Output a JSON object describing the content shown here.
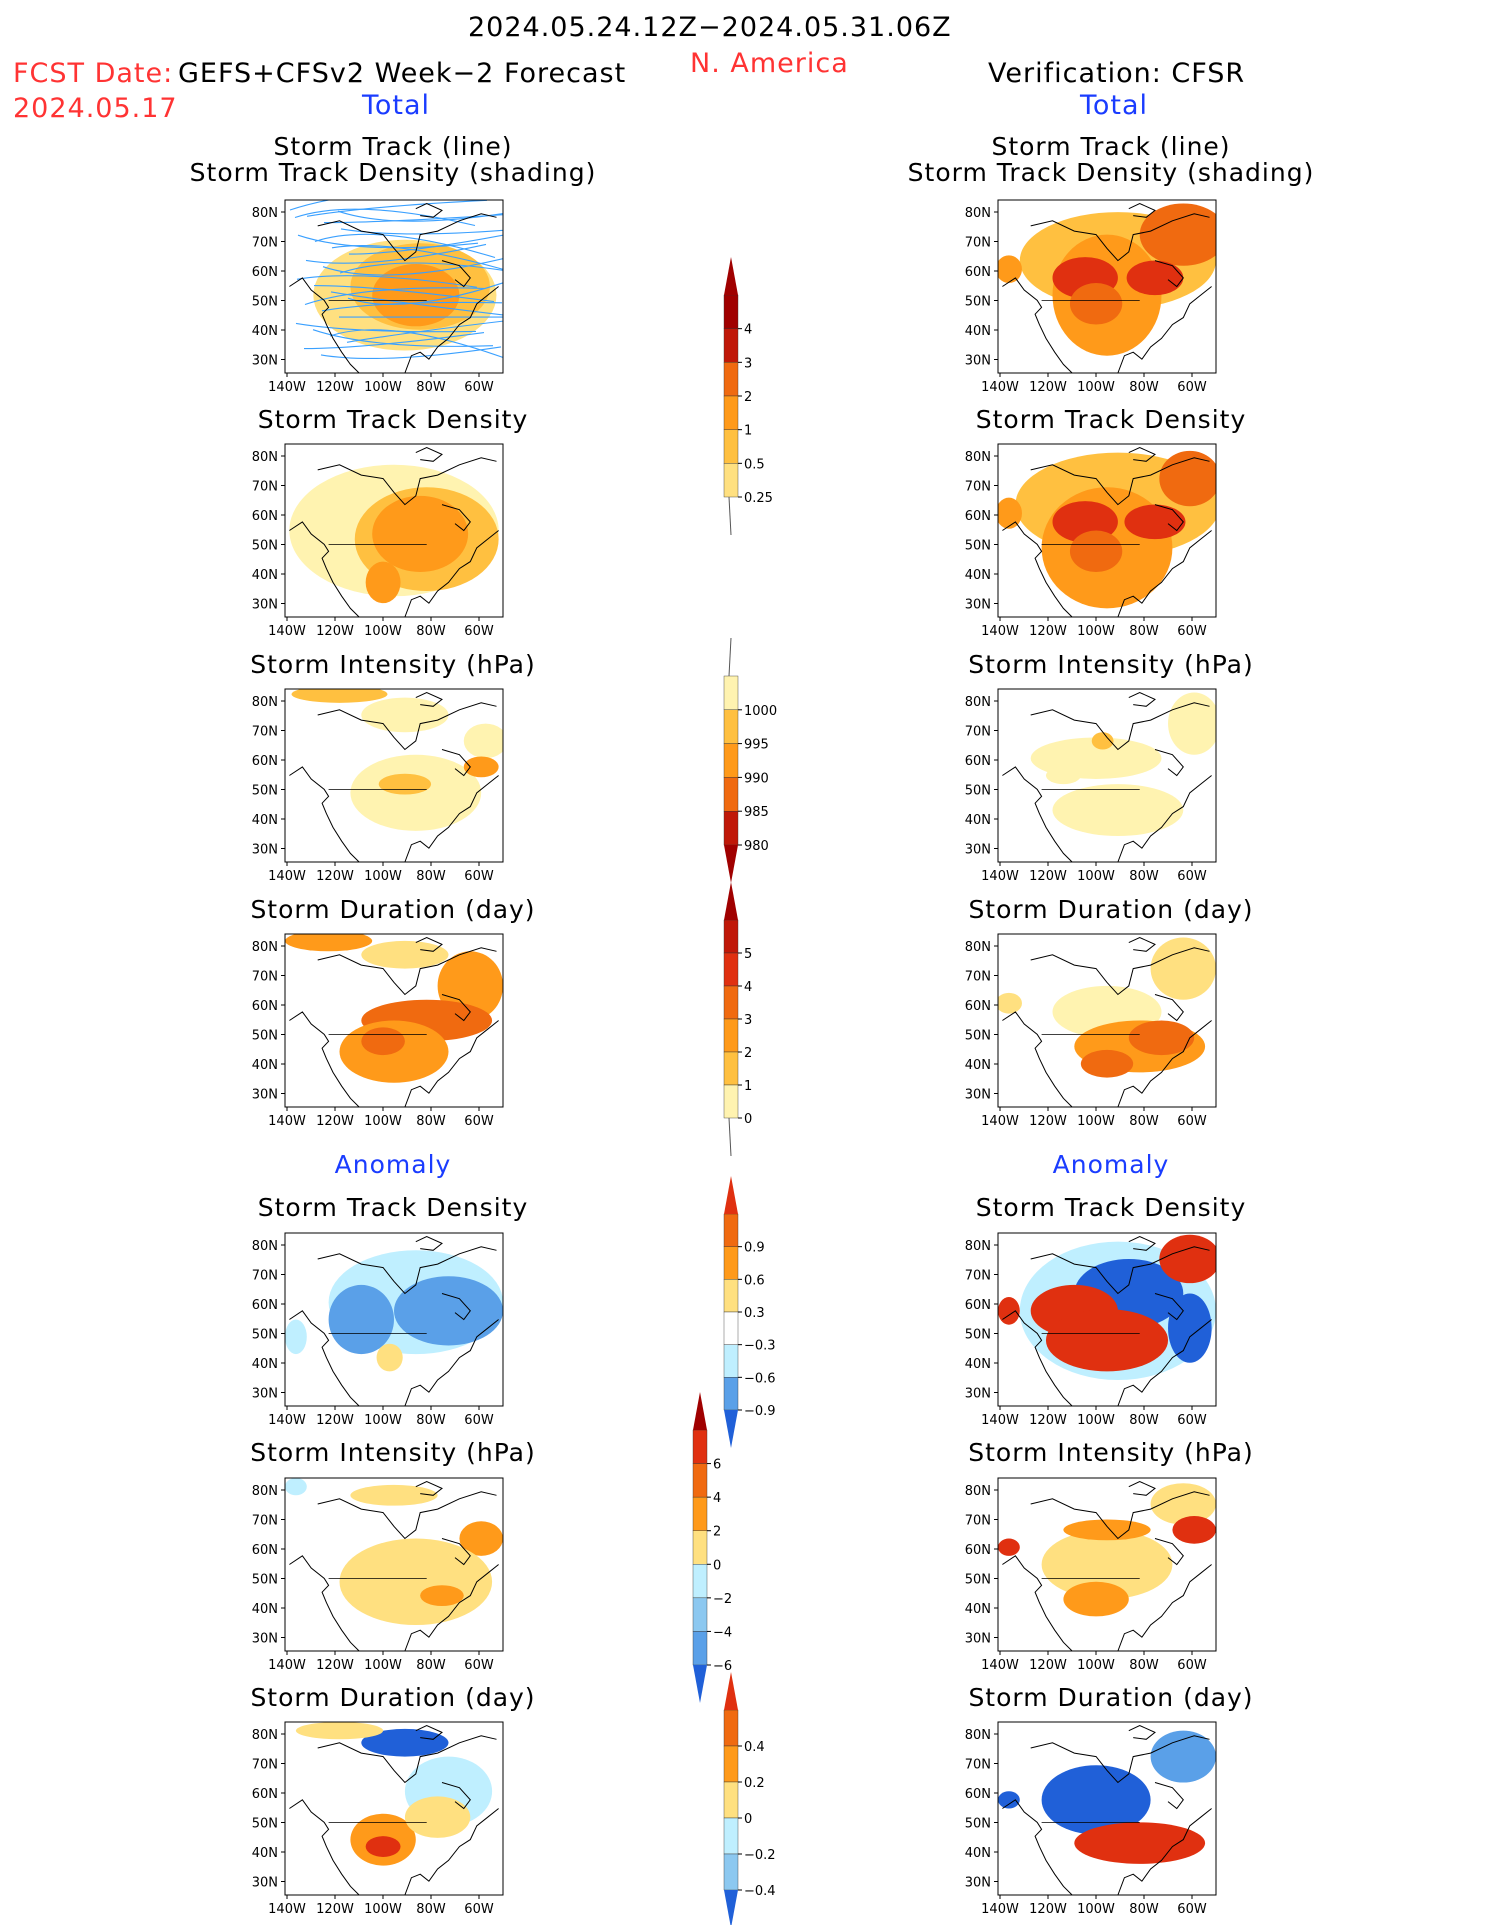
{
  "header": {
    "period": "2024.05.24.12Z−2024.05.31.06Z",
    "region": "N. America",
    "fcst_label": "FCST Date:",
    "fcst_model": "GEFS+CFSv2 Week−2 Forecast",
    "fcst_date": "2024.05.17",
    "verification": "Verification: CFSR"
  },
  "sections": {
    "total": "Total",
    "anomaly": "Anomaly"
  },
  "panel_titles": {
    "track_line": "Storm Track (line)",
    "track_shading": "Storm Track Density (shading)",
    "density": "Storm Track Density",
    "intensity": "Storm Intensity (hPa)",
    "duration": "Storm Duration (day)"
  },
  "axes": {
    "lat_ticks": [
      "80N",
      "70N",
      "60N",
      "50N",
      "40N",
      "30N"
    ],
    "lon_ticks": [
      "140W",
      "120W",
      "100W",
      "80W",
      "60W"
    ]
  },
  "colorbars": [
    {
      "id": "cb-density-total",
      "labels": [
        "4",
        "3",
        "2",
        "1",
        "0.5",
        "0.25"
      ]
    },
    {
      "id": "cb-intensity-total",
      "labels": [
        "1000",
        "995",
        "990",
        "985",
        "980"
      ]
    },
    {
      "id": "cb-duration-total",
      "labels": [
        "5",
        "4",
        "3",
        "2",
        "1",
        "0"
      ]
    },
    {
      "id": "cb-density-anom",
      "labels": [
        "0.9",
        "0.6",
        "0.3",
        "−0.3",
        "−0.6",
        "−0.9"
      ]
    },
    {
      "id": "cb-intensity-anom",
      "labels": [
        "6",
        "4",
        "2",
        "0",
        "−2",
        "−4",
        "−6"
      ]
    },
    {
      "id": "cb-duration-anom",
      "labels": [
        "0.4",
        "0.2",
        "0",
        "−0.2",
        "−0.4"
      ]
    }
  ],
  "colors": {
    "y1": "#fff3b0",
    "y2": "#ffe080",
    "y3": "#ffc040",
    "o1": "#ff9a1a",
    "o2": "#f06a10",
    "r1": "#e03010",
    "r2": "#c01808",
    "dr": "#a00000",
    "b1": "#bfefff",
    "b2": "#8cc8f0",
    "b3": "#5aa0e8",
    "b4": "#2060d8",
    "b5": "#1048c0",
    "track_line": "#3aa0ff",
    "title_red": "#ff3333",
    "title_blue": "#1a3cff"
  }
}
